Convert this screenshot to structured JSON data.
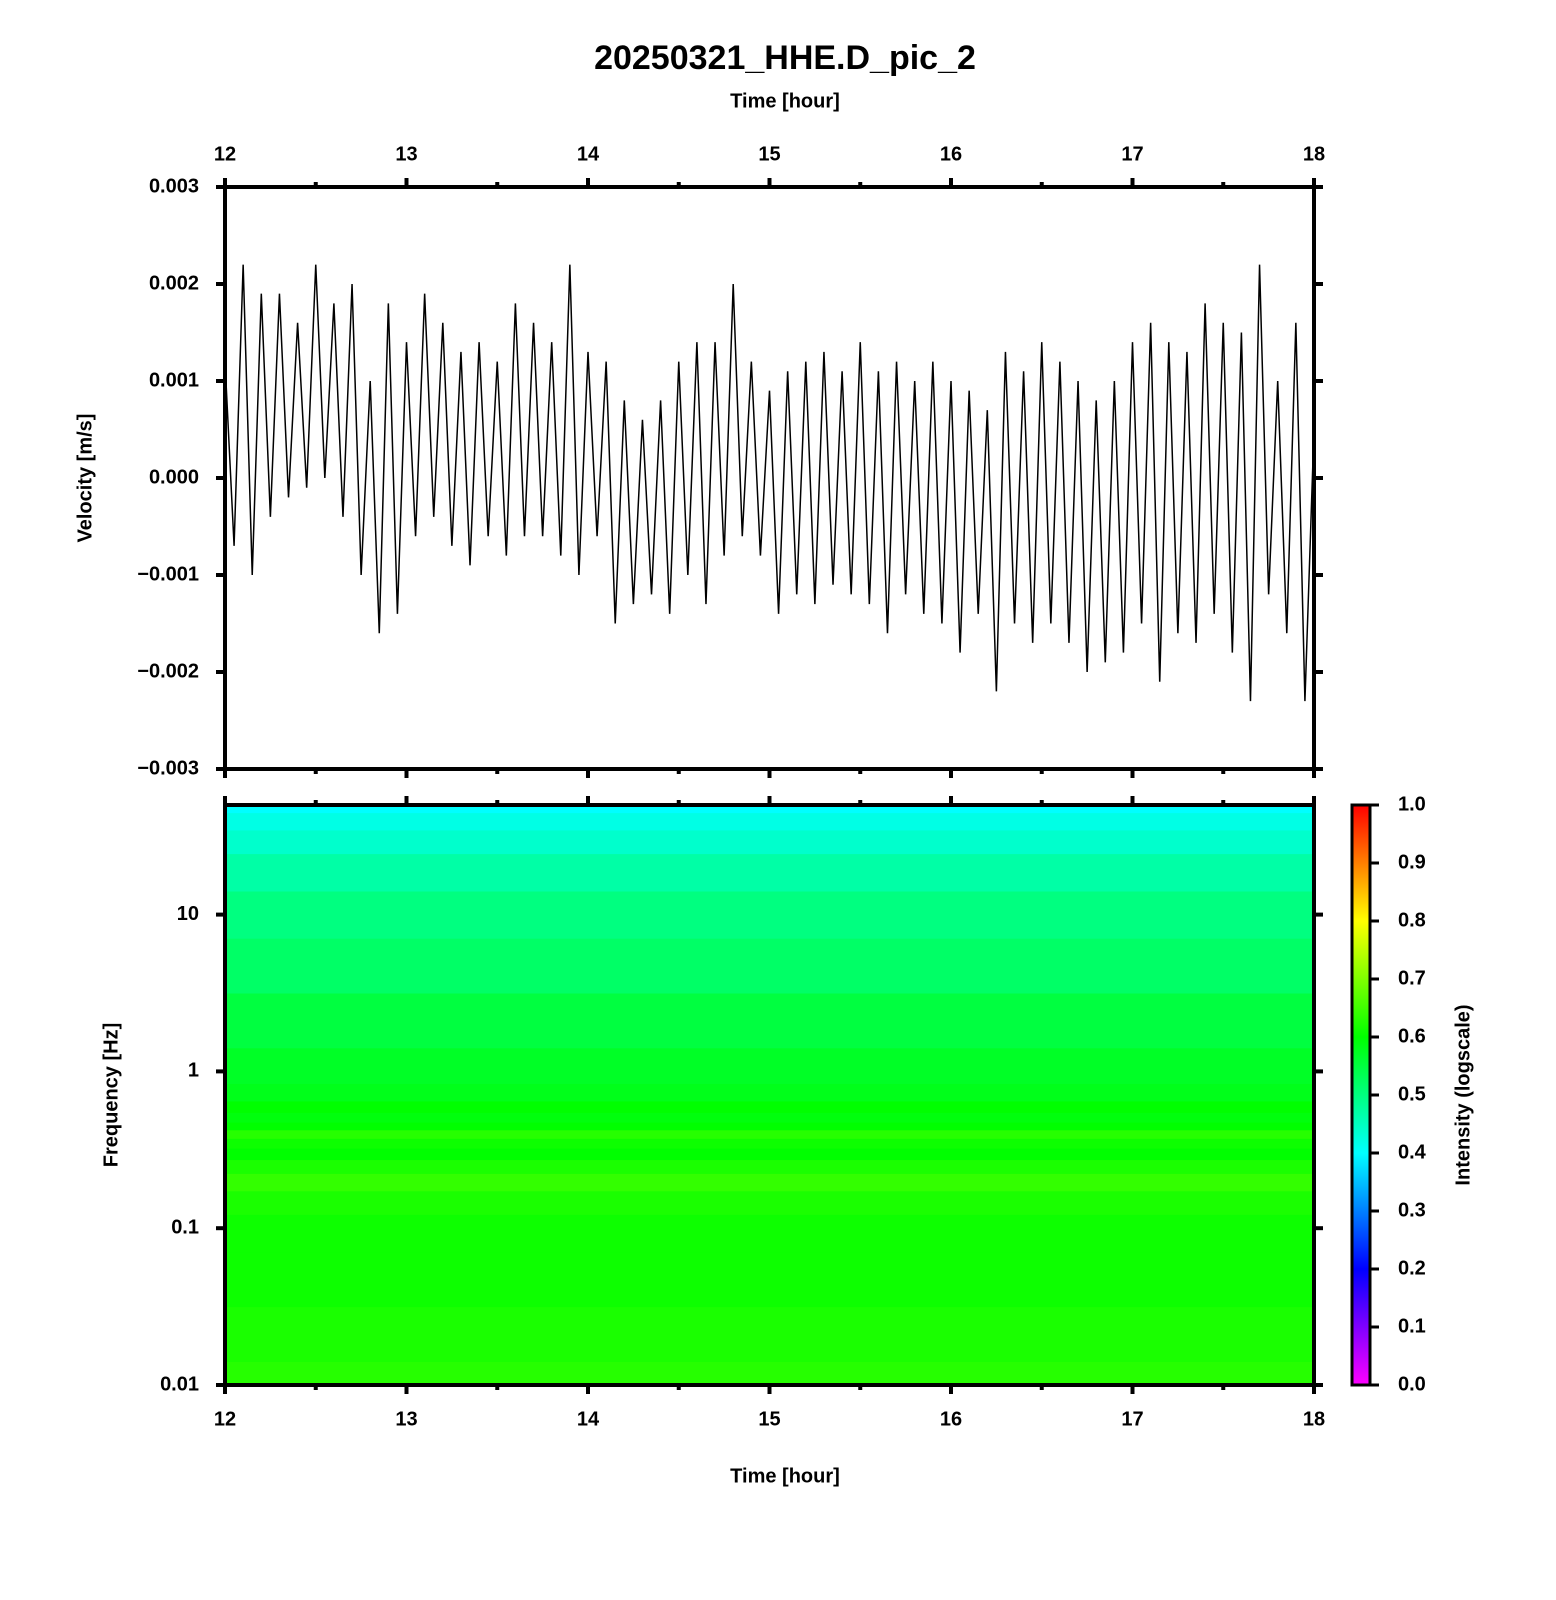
{
  "chart_data": [
    {
      "type": "line",
      "title": "20250321_HHE.D_pic_2",
      "xlabel": "Time [hour]",
      "ylabel": "Velocity [m/s]",
      "color": "#000000",
      "xlim": [
        12,
        18
      ],
      "xticks": [
        12,
        13,
        14,
        15,
        16,
        17,
        18
      ],
      "xminorticks": [
        12.5,
        13.5,
        14.5,
        15.5,
        16.5,
        17.5
      ],
      "ylim": [
        -0.003,
        0.003
      ],
      "yticks": [
        {
          "value": -0.003,
          "label": "−0.003"
        },
        {
          "value": -0.002,
          "label": "−0.002"
        },
        {
          "value": -0.001,
          "label": "−0.001"
        },
        {
          "value": 0,
          "label": "0.000"
        },
        0.001,
        0.002,
        0.003
      ],
      "x": [
        12,
        12.05,
        12.1,
        12.15,
        12.2,
        12.25,
        12.3,
        12.35,
        12.4,
        12.45,
        12.5,
        12.55,
        12.6,
        12.65,
        12.7,
        12.75,
        12.8,
        12.85,
        12.9,
        12.95,
        13,
        13.05,
        13.1,
        13.15,
        13.2,
        13.25,
        13.3,
        13.35,
        13.4,
        13.45,
        13.5,
        13.55,
        13.6,
        13.65,
        13.7,
        13.75,
        13.8,
        13.85,
        13.9,
        13.95,
        14,
        14.05,
        14.1,
        14.15,
        14.2,
        14.25,
        14.3,
        14.35,
        14.4,
        14.45,
        14.5,
        14.55,
        14.6,
        14.65,
        14.7,
        14.75,
        14.8,
        14.85,
        14.9,
        14.95,
        15,
        15.05,
        15.1,
        15.15,
        15.2,
        15.25,
        15.3,
        15.35,
        15.4,
        15.45,
        15.5,
        15.55,
        15.6,
        15.65,
        15.7,
        15.75,
        15.8,
        15.85,
        15.9,
        15.95,
        16,
        16.05,
        16.1,
        16.15,
        16.2,
        16.25,
        16.3,
        16.35,
        16.4,
        16.45,
        16.5,
        16.55,
        16.6,
        16.65,
        16.7,
        16.75,
        16.8,
        16.85,
        16.9,
        16.95,
        17,
        17.05,
        17.1,
        17.15,
        17.2,
        17.25,
        17.3,
        17.35,
        17.4,
        17.45,
        17.5,
        17.55,
        17.6,
        17.65,
        17.7,
        17.75,
        17.8,
        17.85,
        17.9,
        17.95,
        18
      ],
      "values": [
        0.0012,
        -0.0007,
        0.0022,
        -0.001,
        0.0019,
        -0.0004,
        0.0019,
        -0.0002,
        0.0016,
        -0.0001,
        0.0022,
        0.0,
        0.0018,
        -0.0004,
        0.002,
        -0.001,
        0.001,
        -0.0016,
        0.0018,
        -0.0014,
        0.0014,
        -0.0006,
        0.0019,
        -0.0004,
        0.0016,
        -0.0007,
        0.0013,
        -0.0009,
        0.0014,
        -0.0006,
        0.0012,
        -0.0008,
        0.0018,
        -0.0006,
        0.0016,
        -0.0006,
        0.0014,
        -0.0008,
        0.0022,
        -0.001,
        0.0013,
        -0.0006,
        0.0012,
        -0.0015,
        0.0008,
        -0.0013,
        0.0006,
        -0.0012,
        0.0008,
        -0.0014,
        0.0012,
        -0.001,
        0.0014,
        -0.0013,
        0.0014,
        -0.0008,
        0.002,
        -0.0006,
        0.0012,
        -0.0008,
        0.0009,
        -0.0014,
        0.0011,
        -0.0012,
        0.0012,
        -0.0013,
        0.0013,
        -0.0011,
        0.0011,
        -0.0012,
        0.0014,
        -0.0013,
        0.0011,
        -0.0016,
        0.0012,
        -0.0012,
        0.001,
        -0.0014,
        0.0012,
        -0.0015,
        0.001,
        -0.0018,
        0.0009,
        -0.0014,
        0.0007,
        -0.0022,
        0.0013,
        -0.0015,
        0.0011,
        -0.0017,
        0.0014,
        -0.0015,
        0.0012,
        -0.0017,
        0.001,
        -0.002,
        0.0008,
        -0.0019,
        0.001,
        -0.0018,
        0.0014,
        -0.0015,
        0.0016,
        -0.0021,
        0.0014,
        -0.0016,
        0.0013,
        -0.0017,
        0.0018,
        -0.0014,
        0.0016,
        -0.0018,
        0.0015,
        -0.0023,
        0.0022,
        -0.0012,
        0.001,
        -0.0016,
        0.0016,
        -0.0023,
        0.0005
      ]
    },
    {
      "type": "heatmap",
      "xlabel": "Time [hour]",
      "ylabel": "Frequency [Hz]",
      "colorbar_label": "Intensity (logscale)",
      "xlim": [
        12,
        18
      ],
      "xticks": [
        12,
        13,
        14,
        15,
        16,
        17,
        18
      ],
      "xminorticks": [
        12.5,
        13.5,
        14.5,
        15.5,
        16.5,
        17.5
      ],
      "ylog": true,
      "ylim": [
        0.01,
        50
      ],
      "yticks": [
        0.01,
        0.1,
        1,
        10
      ],
      "frequencies": [
        0.01,
        0.02,
        0.05,
        0.1,
        0.15,
        0.2,
        0.25,
        0.3,
        0.35,
        0.4,
        0.45,
        0.5,
        0.6,
        0.7,
        1,
        2,
        5,
        10,
        20,
        30,
        40,
        50
      ],
      "intensity": [
        0.63,
        0.62,
        0.61,
        0.61,
        0.62,
        0.64,
        0.62,
        0.6,
        0.61,
        0.63,
        0.6,
        0.59,
        0.6,
        0.58,
        0.57,
        0.55,
        0.52,
        0.5,
        0.47,
        0.44,
        0.42,
        0.4
      ],
      "clim": [
        0,
        1
      ],
      "colormap": [
        "#ff00ff",
        "#0000ff",
        "#00ffff",
        "#00ff00",
        "#ffff00",
        "#ff0000"
      ],
      "cticks": [
        {
          "value": 0,
          "label": "0.0"
        },
        0.1,
        0.2,
        0.3,
        0.4,
        0.5,
        0.6,
        0.7,
        0.8,
        0.9,
        {
          "value": 1,
          "label": "1.0"
        }
      ]
    }
  ]
}
